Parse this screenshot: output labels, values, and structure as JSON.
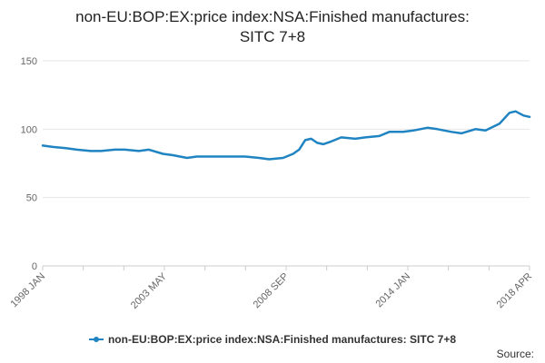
{
  "chart_data": {
    "type": "line",
    "title": "non-EU:BOP:EX:price index:NSA:Finished manufactures:\nSITC 7+8",
    "xlabel": "",
    "ylabel": "",
    "ylim": [
      0,
      150
    ],
    "yticks": [
      0,
      50,
      100,
      150
    ],
    "x_tick_labels": [
      "1998 JAN",
      "2003 MAY",
      "2008 SEP",
      "2014 JAN",
      "2018 APR"
    ],
    "x_start": "1998-01",
    "x_end": "2018-04",
    "grid": true,
    "legend_position": "bottom",
    "series": [
      {
        "name": "non-EU:BOP:EX:price index:NSA:Finished manufactures: SITC 7+8",
        "color": "#1f84c1",
        "points": [
          [
            "1998-01",
            88
          ],
          [
            "1998-06",
            87
          ],
          [
            "1999-01",
            86
          ],
          [
            "1999-06",
            85
          ],
          [
            "2000-01",
            84
          ],
          [
            "2000-06",
            84
          ],
          [
            "2001-01",
            85
          ],
          [
            "2001-06",
            85
          ],
          [
            "2002-01",
            84
          ],
          [
            "2002-06",
            85
          ],
          [
            "2003-01",
            82
          ],
          [
            "2003-06",
            81
          ],
          [
            "2004-01",
            79
          ],
          [
            "2004-06",
            80
          ],
          [
            "2005-01",
            80
          ],
          [
            "2005-06",
            80
          ],
          [
            "2006-01",
            80
          ],
          [
            "2006-06",
            80
          ],
          [
            "2007-01",
            79
          ],
          [
            "2007-06",
            78
          ],
          [
            "2008-01",
            79
          ],
          [
            "2008-06",
            82
          ],
          [
            "2008-09",
            85
          ],
          [
            "2008-12",
            92
          ],
          [
            "2009-03",
            93
          ],
          [
            "2009-06",
            90
          ],
          [
            "2009-09",
            89
          ],
          [
            "2010-01",
            91
          ],
          [
            "2010-06",
            94
          ],
          [
            "2011-01",
            93
          ],
          [
            "2011-06",
            94
          ],
          [
            "2012-01",
            95
          ],
          [
            "2012-06",
            98
          ],
          [
            "2013-01",
            98
          ],
          [
            "2013-06",
            99
          ],
          [
            "2014-01",
            101
          ],
          [
            "2014-06",
            100
          ],
          [
            "2015-01",
            98
          ],
          [
            "2015-06",
            97
          ],
          [
            "2016-01",
            100
          ],
          [
            "2016-06",
            99
          ],
          [
            "2017-01",
            104
          ],
          [
            "2017-06",
            112
          ],
          [
            "2017-09",
            113
          ],
          [
            "2018-01",
            110
          ],
          [
            "2018-04",
            109
          ]
        ]
      }
    ]
  },
  "source_label": "Source:"
}
